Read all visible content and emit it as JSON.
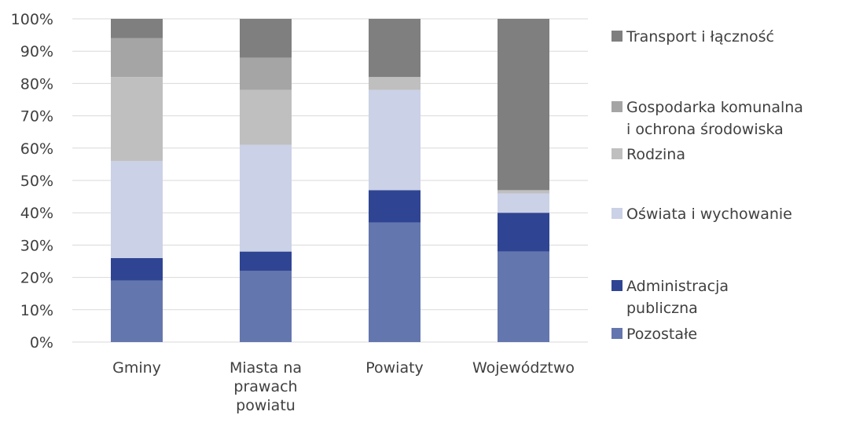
{
  "chart_data": {
    "type": "bar",
    "stacked": "percent",
    "categories": [
      [
        "Gminy"
      ],
      [
        "Miasta na",
        "prawach",
        "powiatu"
      ],
      [
        "Powiaty"
      ],
      [
        "Województwo"
      ]
    ],
    "series": [
      {
        "name": "Pozostałe",
        "color": "#6476AE",
        "values": [
          19,
          22,
          37,
          28
        ]
      },
      {
        "name": "Administracja publiczna",
        "legend_lines": [
          "Administracja",
          "publiczna"
        ],
        "color": "#2F4593",
        "values": [
          7,
          6,
          10,
          12
        ]
      },
      {
        "name": "Oświata i wychowanie",
        "color": "#CBD1E6",
        "values": [
          30,
          33,
          31,
          6
        ]
      },
      {
        "name": "Rodzina",
        "color": "#BFBFBF",
        "values": [
          26,
          17,
          4,
          1
        ]
      },
      {
        "name": "Gospodarka komunalna i ochrona środowiska",
        "legend_lines": [
          "Gospodarka komunalna",
          "i ochrona środowiska"
        ],
        "color": "#A5A5A5",
        "values": [
          12,
          10,
          0,
          0
        ]
      },
      {
        "name": "Transport i łączność",
        "color": "#7F7F7F",
        "values": [
          6,
          12,
          18,
          53
        ]
      }
    ],
    "y_ticks": [
      "0%",
      "10%",
      "20%",
      "30%",
      "40%",
      "50%",
      "60%",
      "70%",
      "80%",
      "90%",
      "100%"
    ],
    "ylim": [
      0,
      100
    ],
    "grid": true,
    "legend_position": "right",
    "colors": {
      "grid": "#D9D9D9",
      "text": "#404040"
    }
  }
}
